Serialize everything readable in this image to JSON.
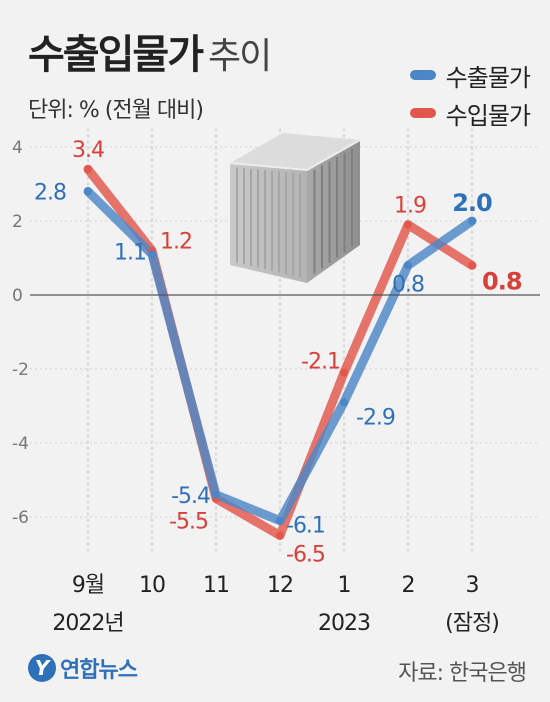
{
  "header": {
    "title_main": "수출입물가",
    "title_sub": "추이",
    "unit": "단위: % (전월 대비)"
  },
  "legend": {
    "export_label": "수출물가",
    "import_label": "수입물가"
  },
  "colors": {
    "export": "#4c86c6",
    "import": "#e2574c",
    "label_export": "#2f71b8",
    "label_import": "#d8403a"
  },
  "chart_data": {
    "type": "line",
    "categories": [
      "9월",
      "10",
      "11",
      "12",
      "1",
      "2",
      "3"
    ],
    "category_sublabels": [
      "2022년",
      "",
      "",
      "",
      "2023",
      "",
      "(잠정)"
    ],
    "series": [
      {
        "name": "수출물가",
        "values": [
          2.8,
          1.1,
          -5.4,
          -6.1,
          -2.9,
          0.8,
          2.0
        ]
      },
      {
        "name": "수입물가",
        "values": [
          3.4,
          1.2,
          -5.5,
          -6.5,
          -2.1,
          1.9,
          0.8
        ]
      }
    ],
    "y_ticks": [
      4,
      2,
      0,
      -2,
      -4,
      -6
    ],
    "ylim": [
      -7,
      4.5
    ],
    "grid": "vertical dotted per category, solid zero line"
  },
  "footer": {
    "logo_mark": "Y",
    "logo_text": "연합뉴스",
    "source": "자료: 한국은행"
  }
}
